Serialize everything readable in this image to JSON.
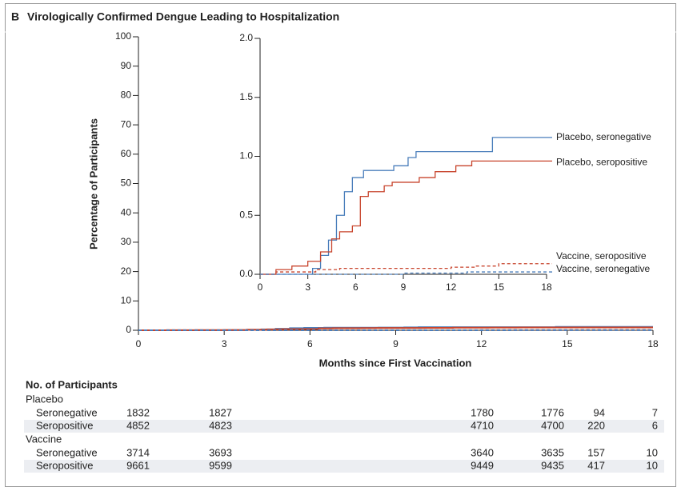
{
  "chart_data": [
    {
      "type": "step",
      "panel": "B",
      "title": "Virologically Confirmed Dengue Leading to Hospitalization",
      "xlabel": "Months since First Vaccination",
      "ylabel": "Percentage of Participants",
      "xlim": [
        0,
        18
      ],
      "xticks": [
        0,
        3,
        6,
        9,
        12,
        15,
        18
      ],
      "ylim": [
        0,
        100
      ],
      "yticks": [
        0,
        10,
        20,
        30,
        40,
        50,
        60,
        70,
        80,
        90,
        100
      ]
    },
    {
      "type": "step",
      "xlim": [
        0,
        18
      ],
      "xticks": [
        0,
        3,
        6,
        9,
        12,
        15,
        18
      ],
      "ylim": [
        0,
        2.0
      ],
      "yticks": [
        {
          "value": 0,
          "label": "0.0"
        },
        0.5,
        {
          "value": 1,
          "label": "1.0"
        },
        1.5,
        {
          "value": 2,
          "label": "2.0"
        }
      ],
      "series": [
        {
          "name": "Placebo, seronegative",
          "color": "#4a7ebb",
          "line_style": "solid",
          "x": [
            0,
            3.3,
            3.8,
            4.3,
            4.8,
            5.3,
            5.8,
            6.5,
            8.4,
            9.3,
            9.8,
            14.6,
            18
          ],
          "values": [
            0,
            0.05,
            0.16,
            0.29,
            0.5,
            0.7,
            0.82,
            0.88,
            0.92,
            0.99,
            1.04,
            1.16,
            1.16
          ]
        },
        {
          "name": "Placebo, seropositive",
          "color": "#c8442c",
          "line_style": "solid",
          "x": [
            0,
            1,
            2,
            3,
            3.8,
            4.5,
            5,
            5.8,
            6.3,
            6.8,
            7.8,
            8.3,
            10,
            11,
            12.3,
            13.3,
            18
          ],
          "values": [
            0,
            0.04,
            0.07,
            0.11,
            0.19,
            0.3,
            0.36,
            0.41,
            0.66,
            0.7,
            0.75,
            0.78,
            0.82,
            0.87,
            0.92,
            0.96,
            0.96
          ]
        },
        {
          "name": "Vaccine, seropositive",
          "color": "#c8442c",
          "line_style": "dashed",
          "x": [
            0,
            1,
            3.5,
            5,
            12,
            13.5,
            15,
            18
          ],
          "values": [
            0,
            0.02,
            0.04,
            0.05,
            0.06,
            0.07,
            0.09,
            0.09
          ]
        },
        {
          "name": "Vaccine, seronegative",
          "color": "#4a7ebb",
          "line_style": "dashed",
          "x": [
            0,
            9,
            13,
            18
          ],
          "values": [
            0,
            0.01,
            0.02,
            0.02
          ]
        }
      ]
    }
  ],
  "risk_table": {
    "title": "No. of Participants",
    "groups": [
      {
        "name": "Placebo",
        "rows": [
          {
            "label": "Seronegative",
            "counts": [
              1832,
              1827,
              1780,
              1776,
              94,
              7
            ]
          },
          {
            "label": "Seropositive",
            "counts": [
              4852,
              4823,
              4710,
              4700,
              220,
              6
            ]
          }
        ]
      },
      {
        "name": "Vaccine",
        "rows": [
          {
            "label": "Seronegative",
            "counts": [
              3714,
              3693,
              3640,
              3635,
              157,
              10
            ]
          },
          {
            "label": "Seropositive",
            "counts": [
              9661,
              9599,
              9449,
              9435,
              417,
              10
            ]
          }
        ]
      }
    ]
  }
}
